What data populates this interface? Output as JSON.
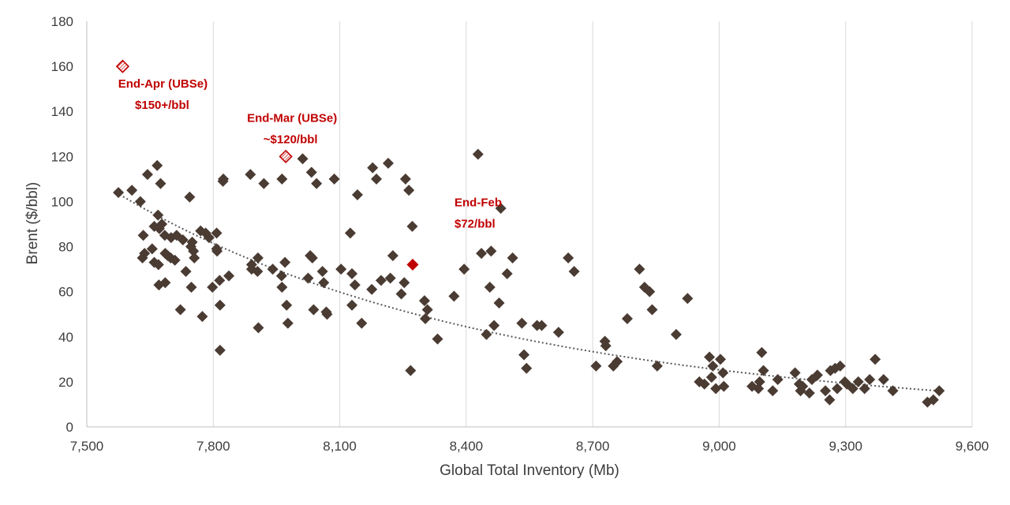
{
  "chart_data": {
    "type": "scatter",
    "title": "",
    "xlabel": "Global Total Inventory (Mb)",
    "ylabel": "Brent ($/bbl)",
    "xlim": [
      7500,
      9600
    ],
    "ylim": [
      0,
      180
    ],
    "xticks": [
      "7,500",
      "7,800",
      "8,100",
      "8,400",
      "8,700",
      "9,000",
      "9,300",
      "9,600"
    ],
    "yticks": [
      "0",
      "20",
      "40",
      "60",
      "80",
      "100",
      "120",
      "140",
      "160",
      "180"
    ],
    "grid": "vertical",
    "legend": "none",
    "colors": {
      "points": "#4a3b33",
      "highlight": "#c00000",
      "grid": "#d9d9d9",
      "trend": "#595959"
    },
    "trendline": {
      "style": "dotted",
      "kind": "power",
      "x_range": [
        7570,
        9520
      ],
      "y_start": 104,
      "y_end": 16
    },
    "series": [
      {
        "name": "",
        "marker": "diamond",
        "points": [
          [
            7575,
            104
          ],
          [
            7607,
            105
          ],
          [
            7627,
            100
          ],
          [
            7644,
            112
          ],
          [
            7667,
            116
          ],
          [
            7675,
            108
          ],
          [
            7669,
            94
          ],
          [
            7660,
            89
          ],
          [
            7678,
            90
          ],
          [
            7672,
            88
          ],
          [
            7685,
            85
          ],
          [
            7700,
            84
          ],
          [
            7713,
            85
          ],
          [
            7728,
            83
          ],
          [
            7744,
            102
          ],
          [
            7750,
            82
          ],
          [
            7753,
            78
          ],
          [
            7755,
            75
          ],
          [
            7747,
            80
          ],
          [
            7770,
            87
          ],
          [
            7782,
            86
          ],
          [
            7790,
            84
          ],
          [
            7808,
            86
          ],
          [
            7808,
            79
          ],
          [
            7809,
            78
          ],
          [
            7823,
            109
          ],
          [
            7824,
            110
          ],
          [
            7634,
            85
          ],
          [
            7632,
            75
          ],
          [
            7637,
            77
          ],
          [
            7655,
            79
          ],
          [
            7660,
            73
          ],
          [
            7670,
            72
          ],
          [
            7686,
            77
          ],
          [
            7692,
            76
          ],
          [
            7699,
            75
          ],
          [
            7709,
            74
          ],
          [
            7735,
            69
          ],
          [
            7748,
            62
          ],
          [
            7671,
            63
          ],
          [
            7686,
            64
          ],
          [
            7722,
            52
          ],
          [
            7774,
            49
          ],
          [
            7798,
            62
          ],
          [
            7815,
            65
          ],
          [
            7816,
            54
          ],
          [
            7837,
            67
          ],
          [
            7816,
            34
          ],
          [
            7888,
            112
          ],
          [
            7920,
            108
          ],
          [
            7891,
            70
          ],
          [
            7891,
            72
          ],
          [
            7905,
            69
          ],
          [
            7906,
            75
          ],
          [
            7941,
            70
          ],
          [
            7962,
            67
          ],
          [
            7963,
            62
          ],
          [
            7970,
            73
          ],
          [
            7974,
            54
          ],
          [
            7977,
            46
          ],
          [
            7907,
            44
          ],
          [
            7963,
            110
          ],
          [
            8012,
            119
          ],
          [
            8033,
            113
          ],
          [
            8045,
            108
          ],
          [
            8087,
            110
          ],
          [
            8025,
            66
          ],
          [
            8030,
            76
          ],
          [
            8035,
            75
          ],
          [
            8038,
            52
          ],
          [
            8059,
            69
          ],
          [
            8062,
            64
          ],
          [
            8070,
            50
          ],
          [
            8068,
            51
          ],
          [
            8103,
            70
          ],
          [
            8125,
            86
          ],
          [
            8129,
            68
          ],
          [
            8129,
            54
          ],
          [
            8136,
            63
          ],
          [
            8142,
            103
          ],
          [
            8152,
            46
          ],
          [
            8176,
            61
          ],
          [
            8178,
            115
          ],
          [
            8187,
            110
          ],
          [
            8198,
            65
          ],
          [
            8215,
            117
          ],
          [
            8220,
            66
          ],
          [
            8226,
            76
          ],
          [
            8246,
            59
          ],
          [
            8253,
            64
          ],
          [
            8256,
            110
          ],
          [
            8264,
            105
          ],
          [
            8268,
            25
          ],
          [
            8272,
            89
          ],
          [
            8301,
            56
          ],
          [
            8303,
            48
          ],
          [
            8308,
            52
          ],
          [
            8332,
            39
          ],
          [
            8371,
            58
          ],
          [
            8395,
            70
          ],
          [
            8428,
            121
          ],
          [
            8436,
            77
          ],
          [
            8448,
            41
          ],
          [
            8456,
            62
          ],
          [
            8459,
            78
          ],
          [
            8466,
            45
          ],
          [
            8478,
            55
          ],
          [
            8482,
            97
          ],
          [
            8497,
            68
          ],
          [
            8510,
            75
          ],
          [
            8532,
            46
          ],
          [
            8537,
            32
          ],
          [
            8543,
            26
          ],
          [
            8568,
            45
          ],
          [
            8579,
            45
          ],
          [
            8619,
            42
          ],
          [
            8642,
            75
          ],
          [
            8656,
            69
          ],
          [
            8708,
            27
          ],
          [
            8729,
            38
          ],
          [
            8731,
            36
          ],
          [
            8749,
            27
          ],
          [
            8758,
            29
          ],
          [
            8782,
            48
          ],
          [
            8811,
            70
          ],
          [
            8823,
            62
          ],
          [
            8835,
            60
          ],
          [
            8841,
            52
          ],
          [
            8853,
            27
          ],
          [
            8898,
            41
          ],
          [
            8925,
            57
          ],
          [
            8953,
            20
          ],
          [
            8965,
            19
          ],
          [
            8977,
            31
          ],
          [
            8982,
            22
          ],
          [
            8985,
            27
          ],
          [
            8992,
            17
          ],
          [
            9003,
            30
          ],
          [
            9009,
            24
          ],
          [
            9011,
            18
          ],
          [
            9078,
            18
          ],
          [
            9093,
            17
          ],
          [
            9096,
            20
          ],
          [
            9101,
            33
          ],
          [
            9105,
            25
          ],
          [
            9127,
            16
          ],
          [
            9139,
            21
          ],
          [
            9180,
            24
          ],
          [
            9190,
            19
          ],
          [
            9193,
            16
          ],
          [
            9198,
            18
          ],
          [
            9214,
            15
          ],
          [
            9220,
            21
          ],
          [
            9233,
            23
          ],
          [
            9252,
            16
          ],
          [
            9262,
            12
          ],
          [
            9264,
            25
          ],
          [
            9275,
            26
          ],
          [
            9280,
            17
          ],
          [
            9287,
            27
          ],
          [
            9298,
            20
          ],
          [
            9303,
            19
          ],
          [
            9317,
            17
          ],
          [
            9330,
            20
          ],
          [
            9345,
            17
          ],
          [
            9357,
            21
          ],
          [
            9370,
            30
          ],
          [
            9390,
            21
          ],
          [
            9412,
            16
          ],
          [
            9494,
            11
          ],
          [
            9508,
            12
          ],
          [
            9522,
            16
          ]
        ]
      }
    ],
    "highlights": [
      {
        "x": 8273,
        "y": 72,
        "style": "filled",
        "labels": [
          "End-Feb",
          "$72/bbl"
        ]
      },
      {
        "x": 7972,
        "y": 120,
        "style": "hatched",
        "labels": [
          "End-Mar (UBSe)",
          "~$120/bbl"
        ]
      },
      {
        "x": 7585,
        "y": 160,
        "style": "hatched",
        "labels": [
          "End-Apr (UBSe)",
          "$150+/bbl"
        ]
      }
    ]
  }
}
